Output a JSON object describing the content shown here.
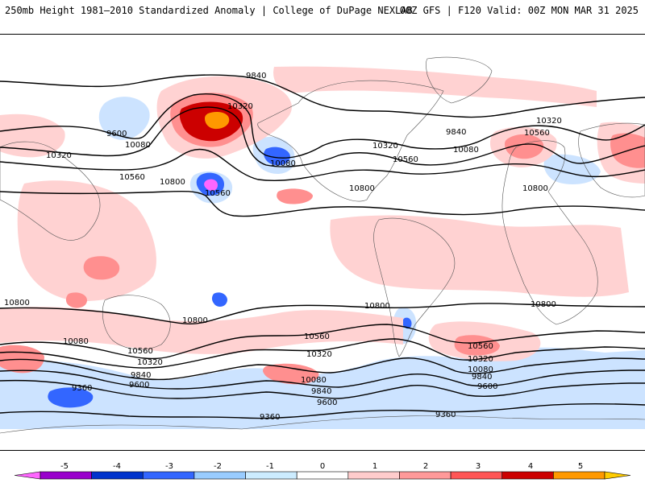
{
  "header": {
    "title": "250mb Height 1981–2010 Standardized Anomaly | College of DuPage NEXLAB",
    "run": "00Z GFS | F120 Valid: 00Z MON MAR 31 2025"
  },
  "colorbar": {
    "labels": [
      "-5",
      "-4",
      "-3",
      "-2",
      "-1",
      "0",
      "1",
      "2",
      "3",
      "4",
      "5"
    ],
    "colors": [
      "#ff66ff",
      "#9900cc",
      "#0033cc",
      "#3366ff",
      "#99ccff",
      "#ccecff",
      "#ffffff",
      "#ffcccc",
      "#ff9999",
      "#ff5555",
      "#cc0000",
      "#ff9900",
      "#ffcc00"
    ]
  },
  "anomaly_colors": {
    "minus1": "#cce3ff",
    "minus2": "#3366ff",
    "minus3": "#0033cc",
    "minus5": "#ff66ff",
    "plus1": "#ffd2d2",
    "plus2": "#ff8f8f",
    "plus3": "#e23030",
    "plus4": "#cc0000",
    "plus5": "#ff9900"
  },
  "contour_labels": [
    "9840",
    "10320",
    "9600",
    "10080",
    "10320",
    "10560",
    "10800",
    "10560",
    "10080",
    "10320",
    "10560",
    "10800",
    "9840",
    "10560",
    "10320",
    "10080",
    "10800",
    "10800",
    "10800",
    "10800",
    "10800",
    "10080",
    "10560",
    "10320",
    "9840",
    "9600",
    "9360",
    "10560",
    "10320",
    "10080",
    "9840",
    "9600",
    "9360",
    "10560",
    "10320",
    "10080",
    "9840",
    "9600",
    "9360"
  ]
}
